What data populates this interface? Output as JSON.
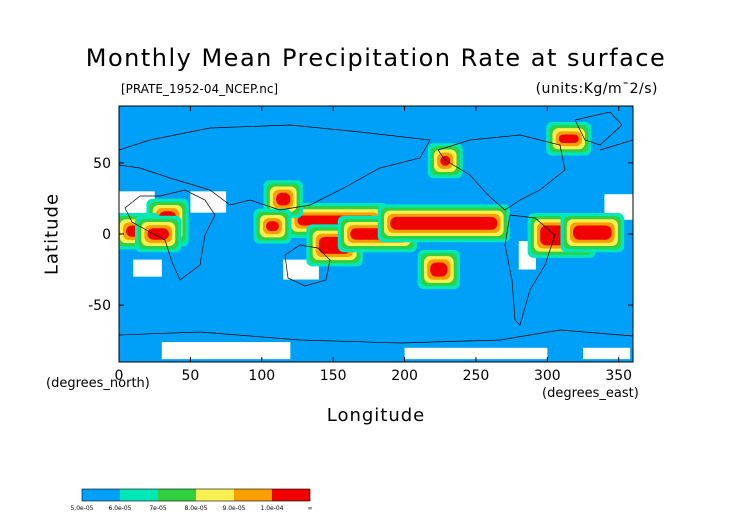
{
  "chart_data": {
    "type": "heatmap",
    "title": "Monthly Mean Precipitation Rate at surface",
    "source_file": "[PRATE_1952-04_NCEP.nc]",
    "units": "(units:Kg/m¯2/s)",
    "xlabel": "Longitude",
    "ylabel": "Latitude",
    "x_unit_label": "(degrees_east)",
    "y_unit_label": "(degrees_north)",
    "xlim": [
      0,
      360
    ],
    "ylim": [
      -90,
      90
    ],
    "x_ticks": [
      0,
      50,
      100,
      150,
      200,
      250,
      300,
      350
    ],
    "y_ticks": [
      -50,
      0,
      50
    ],
    "colorbar": {
      "levels": [
        "5.0e-05",
        "6.0e-05",
        "7e-05",
        "8.0e-05",
        "9.0e-05",
        "1.0e-04",
        "∞"
      ],
      "colors": [
        "#00a0f8",
        "#00e8b8",
        "#30d040",
        "#f8f050",
        "#f8a000",
        "#f00000"
      ]
    },
    "background_color": "#00a0f8",
    "missing_color": "#ffffff",
    "regions": [
      {
        "level": 5,
        "lon": [
          28,
          40
        ],
        "lat": [
          0,
          16
        ]
      },
      {
        "level": 5,
        "lon": [
          5,
          20
        ],
        "lat": [
          -2,
          6
        ]
      },
      {
        "level": 5,
        "lon": [
          20,
          35
        ],
        "lat": [
          -4,
          4
        ]
      },
      {
        "level": 5,
        "lon": [
          125,
          180
        ],
        "lat": [
          6,
          13
        ]
      },
      {
        "level": 5,
        "lon": [
          140,
          162
        ],
        "lat": [
          -14,
          -2
        ]
      },
      {
        "level": 5,
        "lon": [
          162,
          200
        ],
        "lat": [
          -4,
          4
        ]
      },
      {
        "level": 5,
        "lon": [
          190,
          265
        ],
        "lat": [
          3,
          12
        ]
      },
      {
        "level": 5,
        "lon": [
          295,
          325
        ],
        "lat": [
          -8,
          6
        ]
      },
      {
        "level": 5,
        "lon": [
          318,
          345
        ],
        "lat": [
          -4,
          6
        ]
      },
      {
        "level": 5,
        "lon": [
          110,
          120
        ],
        "lat": [
          20,
          29
        ]
      },
      {
        "level": 5,
        "lon": [
          103,
          112
        ],
        "lat": [
          2,
          9
        ]
      },
      {
        "level": 5,
        "lon": [
          218,
          230
        ],
        "lat": [
          -30,
          -20
        ]
      },
      {
        "level": 5,
        "lon": [
          308,
          322
        ],
        "lat": [
          64,
          70
        ]
      },
      {
        "level": 5,
        "lon": [
          225,
          232
        ],
        "lat": [
          48,
          55
        ]
      }
    ],
    "dry_regions": [
      {
        "lon": [
          0,
          25
        ],
        "lat": [
          12,
          30
        ]
      },
      {
        "lon": [
          50,
          75
        ],
        "lat": [
          15,
          30
        ]
      },
      {
        "lon": [
          115,
          140
        ],
        "lat": [
          -32,
          -18
        ]
      },
      {
        "lon": [
          10,
          30
        ],
        "lat": [
          -30,
          -18
        ]
      },
      {
        "lon": [
          340,
          360
        ],
        "lat": [
          10,
          28
        ]
      },
      {
        "lon": [
          280,
          292
        ],
        "lat": [
          -25,
          -5
        ]
      },
      {
        "lon": [
          30,
          120
        ],
        "lat": [
          -88,
          -76
        ]
      },
      {
        "lon": [
          200,
          300
        ],
        "lat": [
          -88,
          -80
        ]
      },
      {
        "lon": [
          325,
          358
        ],
        "lat": [
          -88,
          -80
        ]
      }
    ]
  }
}
